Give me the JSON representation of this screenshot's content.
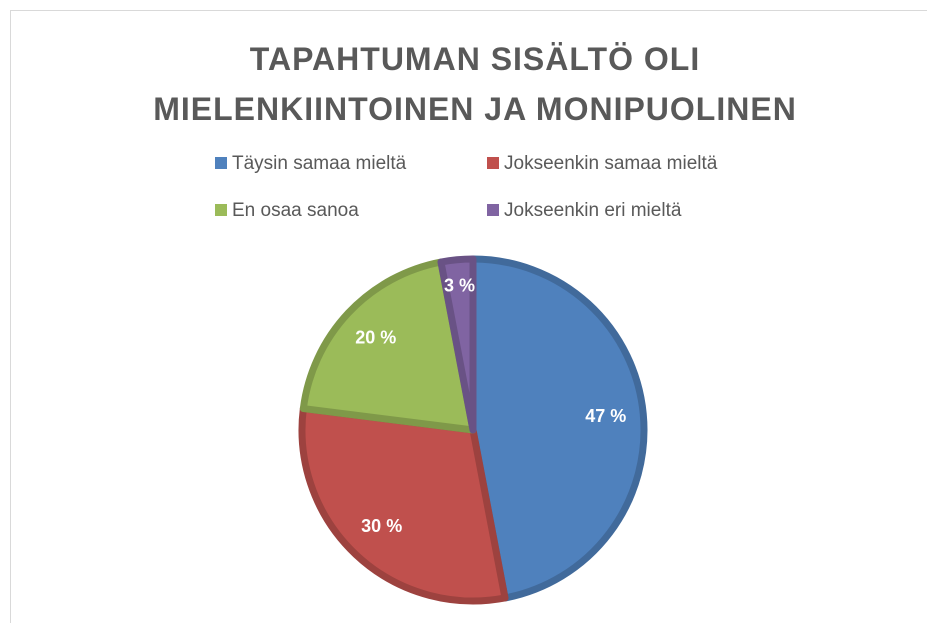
{
  "chart_data": {
    "type": "pie",
    "title": "TAPAHTUMAN SISÄLTÖ OLI MIELENKIINTOINEN JA MONIPUOLINEN",
    "categories": [
      "Täysin samaa mieltä",
      "Jokseenkin samaa mieltä",
      "En osaa sanoa",
      "Jokseenkin eri mieltä"
    ],
    "values": [
      47,
      30,
      20,
      3
    ],
    "value_labels": [
      "47 %",
      "30 %",
      "20 %",
      "3 %"
    ],
    "colors": [
      "#4f81bd",
      "#c0504d",
      "#9bbb59",
      "#8064a2"
    ],
    "legend": "top"
  }
}
